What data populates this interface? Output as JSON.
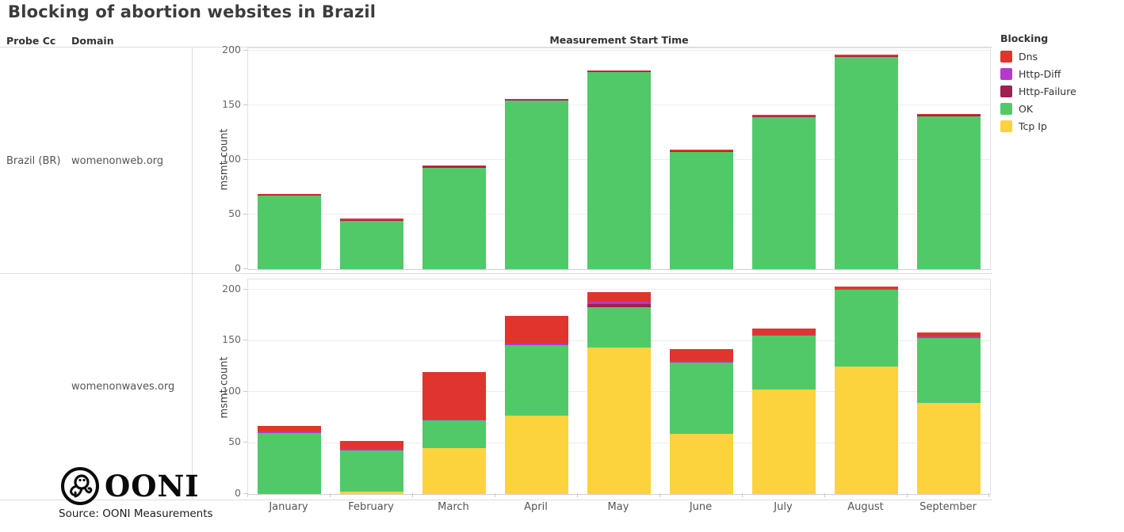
{
  "title": "Blocking of abortion websites in Brazil",
  "columns": {
    "probe_cc": "Probe Cc",
    "domain": "Domain",
    "time": "Measurement Start Time"
  },
  "rows": [
    {
      "probe_cc": "Brazil (BR)",
      "domain": "womenonweb.org"
    },
    {
      "probe_cc": "",
      "domain": "womenonwaves.org"
    }
  ],
  "y_axis_label": "msmt count",
  "legend": {
    "title": "Blocking",
    "items": [
      {
        "label": "Dns",
        "color": "#e0342e"
      },
      {
        "label": "Http-Diff",
        "color": "#b23cc6"
      },
      {
        "label": "Http-Failure",
        "color": "#9e2150"
      },
      {
        "label": "OK",
        "color": "#51c968"
      },
      {
        "label": "Tcp Ip",
        "color": "#fdd33d"
      }
    ]
  },
  "logo_text": "OONI",
  "source": "Source: OONI Measurements",
  "chart_data": [
    {
      "type": "bar",
      "stacked": true,
      "facet": {
        "probe_cc": "Brazil (BR)",
        "domain": "womenonweb.org"
      },
      "title": "",
      "xlabel": "Measurement Start Time",
      "ylabel": "msmt count",
      "categories": [
        "January",
        "February",
        "March",
        "April",
        "May",
        "June",
        "July",
        "August",
        "September"
      ],
      "series": [
        {
          "name": "Dns",
          "color": "#e0342e",
          "values": [
            1,
            1,
            1,
            1,
            1,
            1,
            1,
            1,
            1
          ]
        },
        {
          "name": "Http-Diff",
          "color": "#b23cc6",
          "values": [
            0,
            0,
            0,
            0,
            0,
            0,
            0,
            0,
            0
          ]
        },
        {
          "name": "Http-Failure",
          "color": "#9e2150",
          "values": [
            1,
            1,
            1,
            1,
            1,
            1,
            1,
            1,
            1
          ]
        },
        {
          "name": "OK",
          "color": "#51c968",
          "values": [
            67,
            44,
            93,
            154,
            180,
            107,
            139,
            194,
            140
          ]
        },
        {
          "name": "Tcp Ip",
          "color": "#fdd33d",
          "values": [
            0,
            0,
            0,
            0,
            0,
            0,
            0,
            0,
            0
          ]
        }
      ],
      "totals": [
        69,
        46,
        95,
        156,
        182,
        109,
        141,
        196,
        142
      ],
      "stack_order": "series listed top-to-bottom",
      "ylim": [
        0,
        202
      ],
      "yticks": [
        0,
        50,
        100,
        150,
        200
      ],
      "grid": true,
      "legend_position": "top-right"
    },
    {
      "type": "bar",
      "stacked": true,
      "facet": {
        "probe_cc": "Brazil (BR)",
        "domain": "womenonwaves.org"
      },
      "title": "",
      "xlabel": "Measurement Start Time",
      "ylabel": "msmt count",
      "categories": [
        "January",
        "February",
        "March",
        "April",
        "May",
        "June",
        "July",
        "August",
        "September"
      ],
      "series": [
        {
          "name": "Dns",
          "color": "#e0342e",
          "values": [
            6,
            8,
            46,
            27,
            10,
            12,
            6,
            2,
            4
          ]
        },
        {
          "name": "Http-Diff",
          "color": "#b23cc6",
          "values": [
            1,
            1,
            1,
            1,
            2,
            1,
            1,
            1,
            1
          ]
        },
        {
          "name": "Http-Failure",
          "color": "#9e2150",
          "values": [
            0,
            0,
            0,
            0,
            3,
            0,
            0,
            0,
            0
          ]
        },
        {
          "name": "OK",
          "color": "#51c968",
          "values": [
            60,
            41,
            27,
            69,
            40,
            70,
            53,
            75,
            64
          ]
        },
        {
          "name": "Tcp Ip",
          "color": "#fdd33d",
          "values": [
            0,
            2,
            45,
            77,
            143,
            59,
            102,
            125,
            89
          ]
        }
      ],
      "totals": [
        67,
        52,
        119,
        174,
        198,
        142,
        162,
        203,
        158
      ],
      "stack_order": "series listed top-to-bottom",
      "ylim": [
        0,
        210
      ],
      "yticks": [
        0,
        50,
        100,
        150,
        200
      ],
      "grid": true,
      "legend_position": "top-right"
    }
  ]
}
